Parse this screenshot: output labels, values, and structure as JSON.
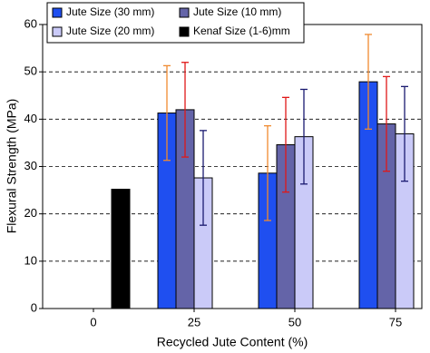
{
  "chart_data": {
    "type": "bar",
    "x_label": "Recycled Jute Content (%)",
    "y_label": "Flexural Strength (MPa)",
    "categories": [
      "0",
      "25",
      "50",
      "75"
    ],
    "series": [
      {
        "name": "Jute Size (30 mm)",
        "color": "#1f4ff0",
        "error_color": "#f08a30",
        "values": [
          null,
          41.3,
          28.6,
          47.9
        ],
        "errors": [
          null,
          10,
          10,
          10
        ]
      },
      {
        "name": "Jute Size (10 mm)",
        "color": "#6464a8",
        "error_color": "#e01818",
        "values": [
          null,
          42,
          34.6,
          39
        ],
        "errors": [
          null,
          10,
          10,
          10
        ]
      },
      {
        "name": "Jute Size (20 mm)",
        "color": "#cacaf8",
        "error_color": "#1a1a70",
        "values": [
          null,
          27.6,
          36.3,
          36.9
        ],
        "errors": [
          null,
          10,
          10,
          10
        ]
      },
      {
        "name": "Kenaf Size (1-6)mm",
        "color": "#000000",
        "values": [
          25.2,
          null,
          null,
          null
        ]
      }
    ],
    "ylim": [
      0,
      60
    ],
    "yticks": [
      0,
      10,
      20,
      30,
      40,
      50,
      60
    ],
    "grid": true
  }
}
